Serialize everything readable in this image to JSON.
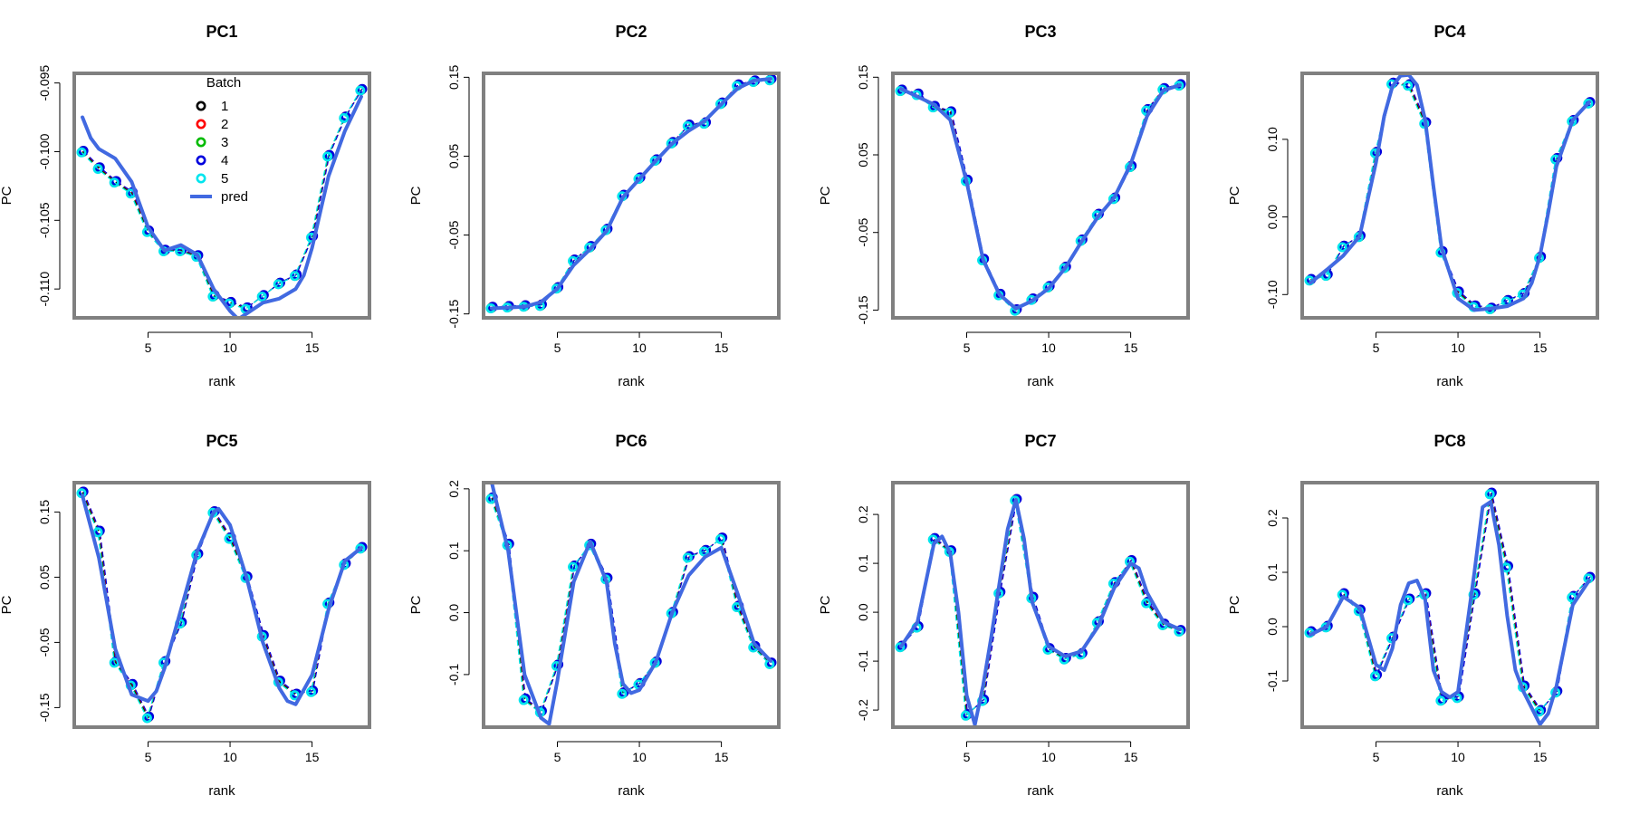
{
  "figure": {
    "batch_colors": {
      "1": "#000000",
      "2": "#ff0000",
      "3": "#00bb00",
      "4": "#0000dd",
      "5": "#00e5ee"
    },
    "pred_color": "#4169e1",
    "frame_color": "#808080",
    "legend": {
      "title": "Batch",
      "entries": [
        "1",
        "2",
        "3",
        "4",
        "5",
        "pred"
      ],
      "placement": "top-center of PC1"
    }
  },
  "chart_data": [
    {
      "type": "line",
      "title": "PC1",
      "xlabel": "rank",
      "ylabel": "PC",
      "xlim": [
        0.5,
        18.5
      ],
      "ylim": [
        -0.1121,
        -0.0943
      ],
      "xticks": [
        5,
        10,
        15
      ],
      "xtick_labels": [
        "5",
        "10",
        "15"
      ],
      "yticks": [
        -0.11,
        -0.105,
        -0.1,
        -0.095
      ],
      "ytick_labels": [
        "-0.110",
        "-0.105",
        "-0.100",
        "-0.095"
      ],
      "x": [
        1,
        2,
        3,
        4,
        5,
        6,
        7,
        8,
        9,
        10,
        11,
        12,
        13,
        14,
        15,
        16,
        17,
        18
      ],
      "y": [
        -0.1,
        -0.1012,
        -0.1022,
        -0.103,
        -0.1058,
        -0.1072,
        -0.1072,
        -0.1076,
        -0.1105,
        -0.111,
        -0.1114,
        -0.1105,
        -0.1096,
        -0.109,
        -0.1062,
        -0.1003,
        -0.0975,
        -0.0955
      ],
      "pred": {
        "x": [
          1,
          1.5,
          2,
          3,
          4,
          5,
          6,
          7,
          8,
          9,
          10,
          10.5,
          11,
          12,
          13,
          14,
          14.5,
          15,
          16,
          17,
          18
        ],
        "y": [
          -0.0975,
          -0.099,
          -0.0998,
          -0.1005,
          -0.1022,
          -0.1055,
          -0.1072,
          -0.1068,
          -0.1075,
          -0.11,
          -0.1116,
          -0.1122,
          -0.1118,
          -0.111,
          -0.1107,
          -0.11,
          -0.109,
          -0.107,
          -0.1018,
          -0.0985,
          -0.096
        ]
      }
    },
    {
      "type": "line",
      "title": "PC2",
      "xlabel": "rank",
      "ylabel": "PC",
      "xlim": [
        0.5,
        18.5
      ],
      "ylim": [
        -0.155,
        0.155
      ],
      "xticks": [
        5,
        10,
        15
      ],
      "xtick_labels": [
        "5",
        "10",
        "15"
      ],
      "yticks": [
        -0.15,
        -0.05,
        0.05,
        0.15
      ],
      "ytick_labels": [
        "-0.15",
        "-0.05",
        "0.05",
        "0.15"
      ],
      "x": [
        1,
        2,
        3,
        4,
        5,
        6,
        7,
        8,
        9,
        10,
        11,
        12,
        13,
        14,
        15,
        16,
        17,
        18
      ],
      "y": [
        -0.142,
        -0.141,
        -0.14,
        -0.139,
        -0.117,
        -0.082,
        -0.065,
        -0.043,
        0.0,
        0.022,
        0.045,
        0.067,
        0.089,
        0.092,
        0.117,
        0.14,
        0.145,
        0.147
      ],
      "pred": {
        "x": [
          1,
          2,
          3,
          4,
          5,
          6,
          7,
          8,
          9,
          10,
          11,
          12,
          13,
          14,
          15,
          16,
          17,
          18
        ],
        "y": [
          -0.143,
          -0.142,
          -0.141,
          -0.135,
          -0.118,
          -0.088,
          -0.068,
          -0.045,
          -0.002,
          0.021,
          0.044,
          0.066,
          0.082,
          0.095,
          0.116,
          0.136,
          0.146,
          0.148
        ]
      }
    },
    {
      "type": "line",
      "title": "PC3",
      "xlabel": "rank",
      "ylabel": "PC",
      "xlim": [
        0.5,
        18.5
      ],
      "ylim": [
        -0.16,
        0.155
      ],
      "xticks": [
        5,
        10,
        15
      ],
      "xtick_labels": [
        "5",
        "10",
        "15"
      ],
      "yticks": [
        -0.15,
        -0.05,
        0.05,
        0.15
      ],
      "ytick_labels": [
        "-0.15",
        "-0.05",
        "0.05",
        "0.15"
      ],
      "x": [
        1,
        2,
        3,
        4,
        5,
        6,
        7,
        8,
        9,
        10,
        11,
        12,
        13,
        14,
        15,
        16,
        17,
        18
      ],
      "y": [
        0.133,
        0.128,
        0.112,
        0.105,
        0.017,
        -0.085,
        -0.13,
        -0.15,
        -0.136,
        -0.12,
        -0.095,
        -0.06,
        -0.027,
        -0.006,
        0.035,
        0.108,
        0.135,
        0.14
      ],
      "pred": {
        "x": [
          1,
          2,
          3,
          4,
          5,
          6,
          7,
          8,
          9,
          10,
          11,
          12,
          13,
          14,
          15,
          16,
          17,
          18
        ],
        "y": [
          0.135,
          0.125,
          0.115,
          0.095,
          0.015,
          -0.085,
          -0.13,
          -0.148,
          -0.138,
          -0.122,
          -0.096,
          -0.062,
          -0.03,
          -0.005,
          0.038,
          0.1,
          0.133,
          0.14
        ]
      }
    },
    {
      "type": "line",
      "title": "PC4",
      "xlabel": "rank",
      "ylabel": "PC",
      "xlim": [
        0.5,
        18.5
      ],
      "ylim": [
        -0.13,
        0.185
      ],
      "xticks": [
        5,
        10,
        15
      ],
      "xtick_labels": [
        "5",
        "10",
        "15"
      ],
      "yticks": [
        -0.1,
        0.0,
        0.1
      ],
      "ytick_labels": [
        "-0.10",
        "0.00",
        "0.10"
      ],
      "x": [
        1,
        2,
        3,
        4,
        5,
        6,
        7,
        8,
        9,
        10,
        11,
        12,
        13,
        14,
        15,
        16,
        17,
        18
      ],
      "y": [
        -0.081,
        -0.075,
        -0.038,
        -0.025,
        0.083,
        0.172,
        0.17,
        0.121,
        -0.045,
        -0.097,
        -0.115,
        -0.118,
        -0.108,
        -0.099,
        -0.052,
        0.075,
        0.124,
        0.147
      ],
      "pred": {
        "x": [
          1,
          2,
          3,
          4,
          5,
          5.5,
          6,
          6.5,
          7,
          7.5,
          8,
          8.5,
          9,
          10,
          11,
          12,
          13,
          14,
          14.5,
          15,
          15.5,
          16,
          17,
          18
        ],
        "y": [
          -0.085,
          -0.068,
          -0.05,
          -0.025,
          0.07,
          0.13,
          0.168,
          0.182,
          0.183,
          0.17,
          0.125,
          0.04,
          -0.04,
          -0.105,
          -0.12,
          -0.118,
          -0.115,
          -0.105,
          -0.085,
          -0.05,
          0.005,
          0.065,
          0.125,
          0.148
        ]
      }
    },
    {
      "type": "line",
      "title": "PC5",
      "xlabel": "rank",
      "ylabel": "PC",
      "xlim": [
        0.5,
        18.5
      ],
      "ylim": [
        -0.18,
        0.195
      ],
      "xticks": [
        5,
        10,
        15
      ],
      "xtick_labels": [
        "5",
        "10",
        "15"
      ],
      "yticks": [
        -0.15,
        -0.05,
        0.05,
        0.15
      ],
      "ytick_labels": [
        "-0.15",
        "-0.05",
        "0.05",
        "0.15"
      ],
      "x": [
        1,
        2,
        3,
        4,
        5,
        6,
        7,
        8,
        9,
        10,
        11,
        12,
        13,
        14,
        15,
        16,
        17,
        18
      ],
      "y": [
        0.18,
        0.12,
        -0.08,
        -0.115,
        -0.165,
        -0.08,
        -0.02,
        0.085,
        0.15,
        0.11,
        0.05,
        -0.04,
        -0.11,
        -0.13,
        -0.125,
        0.01,
        0.07,
        0.095
      ],
      "pred": {
        "x": [
          1,
          2,
          3,
          4,
          5,
          5.5,
          6,
          7,
          8,
          9,
          9.3,
          10,
          11,
          12,
          13,
          13.5,
          14,
          15,
          16,
          17,
          18
        ],
        "y": [
          0.175,
          0.08,
          -0.06,
          -0.13,
          -0.14,
          -0.125,
          -0.09,
          0.0,
          0.09,
          0.15,
          0.155,
          0.13,
          0.05,
          -0.05,
          -0.12,
          -0.14,
          -0.145,
          -0.1,
          0.0,
          0.075,
          0.095
        ]
      }
    },
    {
      "type": "line",
      "title": "PC6",
      "xlabel": "rank",
      "ylabel": "PC",
      "xlim": [
        0.5,
        18.5
      ],
      "ylim": [
        -0.185,
        0.21
      ],
      "xticks": [
        5,
        10,
        15
      ],
      "xtick_labels": [
        "5",
        "10",
        "15"
      ],
      "yticks": [
        -0.1,
        0.0,
        0.1,
        0.2
      ],
      "ytick_labels": [
        "-0.1",
        "0.0",
        "0.1",
        "0.2"
      ],
      "x": [
        1,
        2,
        3,
        4,
        5,
        6,
        7,
        8,
        9,
        10,
        11,
        12,
        13,
        14,
        15,
        16,
        17,
        18
      ],
      "y": [
        0.185,
        0.11,
        -0.14,
        -0.16,
        -0.085,
        0.075,
        0.11,
        0.055,
        -0.13,
        -0.115,
        -0.08,
        0.0,
        0.09,
        0.1,
        0.12,
        0.01,
        -0.055,
        -0.082
      ],
      "pred": {
        "x": [
          1,
          2,
          3,
          4,
          4.5,
          5,
          6,
          7,
          8,
          8.5,
          9,
          9.5,
          10,
          11,
          12,
          13,
          14,
          15,
          16,
          17,
          18
        ],
        "y": [
          0.21,
          0.1,
          -0.1,
          -0.17,
          -0.18,
          -0.11,
          0.05,
          0.115,
          0.05,
          -0.05,
          -0.115,
          -0.13,
          -0.125,
          -0.08,
          0.0,
          0.06,
          0.09,
          0.105,
          0.03,
          -0.05,
          -0.078
        ]
      }
    },
    {
      "type": "line",
      "title": "PC7",
      "xlabel": "rank",
      "ylabel": "PC",
      "xlim": [
        0.5,
        18.5
      ],
      "ylim": [
        -0.235,
        0.265
      ],
      "xticks": [
        5,
        10,
        15
      ],
      "xtick_labels": [
        "5",
        "10",
        "15"
      ],
      "yticks": [
        -0.2,
        -0.1,
        0.0,
        0.1,
        0.2
      ],
      "ytick_labels": [
        "-0.2",
        "-0.1",
        "0.0",
        "0.1",
        "0.2"
      ],
      "x": [
        1,
        2,
        3,
        4,
        5,
        6,
        7,
        8,
        9,
        10,
        11,
        12,
        13,
        14,
        15,
        16,
        17,
        18
      ],
      "y": [
        -0.07,
        -0.03,
        0.15,
        0.125,
        -0.21,
        -0.18,
        0.04,
        0.23,
        0.03,
        -0.075,
        -0.095,
        -0.085,
        -0.02,
        0.06,
        0.105,
        0.02,
        -0.025,
        -0.038
      ],
      "pred": {
        "x": [
          1,
          2,
          2.5,
          3,
          3.5,
          4,
          4.5,
          5,
          5.5,
          6,
          6.5,
          7,
          7.5,
          8,
          8.5,
          9,
          10,
          11,
          12,
          13,
          14,
          15,
          15.5,
          16,
          17,
          18
        ],
        "y": [
          -0.07,
          -0.02,
          0.06,
          0.14,
          0.155,
          0.12,
          0.0,
          -0.17,
          -0.23,
          -0.15,
          -0.05,
          0.06,
          0.17,
          0.23,
          0.15,
          0.02,
          -0.07,
          -0.09,
          -0.08,
          -0.03,
          0.05,
          0.1,
          0.09,
          0.04,
          -0.02,
          -0.035
        ]
      }
    },
    {
      "type": "line",
      "title": "PC8",
      "xlabel": "rank",
      "ylabel": "PC",
      "xlim": [
        0.5,
        18.5
      ],
      "ylim": [
        -0.185,
        0.265
      ],
      "xticks": [
        5,
        10,
        15
      ],
      "xtick_labels": [
        "5",
        "10",
        "15"
      ],
      "yticks": [
        -0.1,
        0.0,
        0.1,
        0.2
      ],
      "ytick_labels": [
        "-0.1",
        "0.0",
        "0.1",
        "0.2"
      ],
      "x": [
        1,
        2,
        3,
        4,
        5,
        6,
        7,
        8,
        9,
        10,
        11,
        12,
        13,
        14,
        15,
        16,
        17,
        18
      ],
      "y": [
        -0.01,
        0.0,
        0.06,
        0.03,
        -0.09,
        -0.02,
        0.05,
        0.06,
        -0.135,
        -0.13,
        0.06,
        0.245,
        0.11,
        -0.11,
        -0.155,
        -0.12,
        0.055,
        0.09
      ],
      "pred": {
        "x": [
          1,
          2,
          3,
          4,
          5,
          5.5,
          6,
          6.5,
          7,
          7.5,
          8,
          8.5,
          9,
          9.5,
          10,
          10.5,
          11,
          11.5,
          12,
          12.5,
          13,
          13.5,
          14,
          14.5,
          15,
          15.5,
          16,
          17,
          18
        ],
        "y": [
          -0.015,
          0.0,
          0.055,
          0.035,
          -0.07,
          -0.08,
          -0.04,
          0.04,
          0.08,
          0.085,
          0.05,
          -0.08,
          -0.12,
          -0.13,
          -0.12,
          -0.01,
          0.1,
          0.22,
          0.23,
          0.15,
          0.02,
          -0.08,
          -0.12,
          -0.15,
          -0.18,
          -0.16,
          -0.11,
          0.04,
          0.085
        ]
      }
    }
  ]
}
